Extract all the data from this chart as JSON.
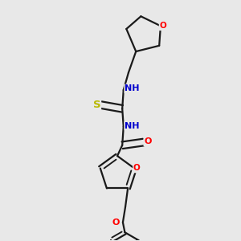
{
  "background_color": "#e8e8e8",
  "bond_color": "#1a1a1a",
  "bond_width": 1.6,
  "atom_colors": {
    "N": "#0000cd",
    "O": "#ff0000",
    "S": "#b8b800",
    "C": "#1a1a1a"
  },
  "font_size": 8.0,
  "figsize": [
    3.0,
    3.0
  ],
  "dpi": 100
}
